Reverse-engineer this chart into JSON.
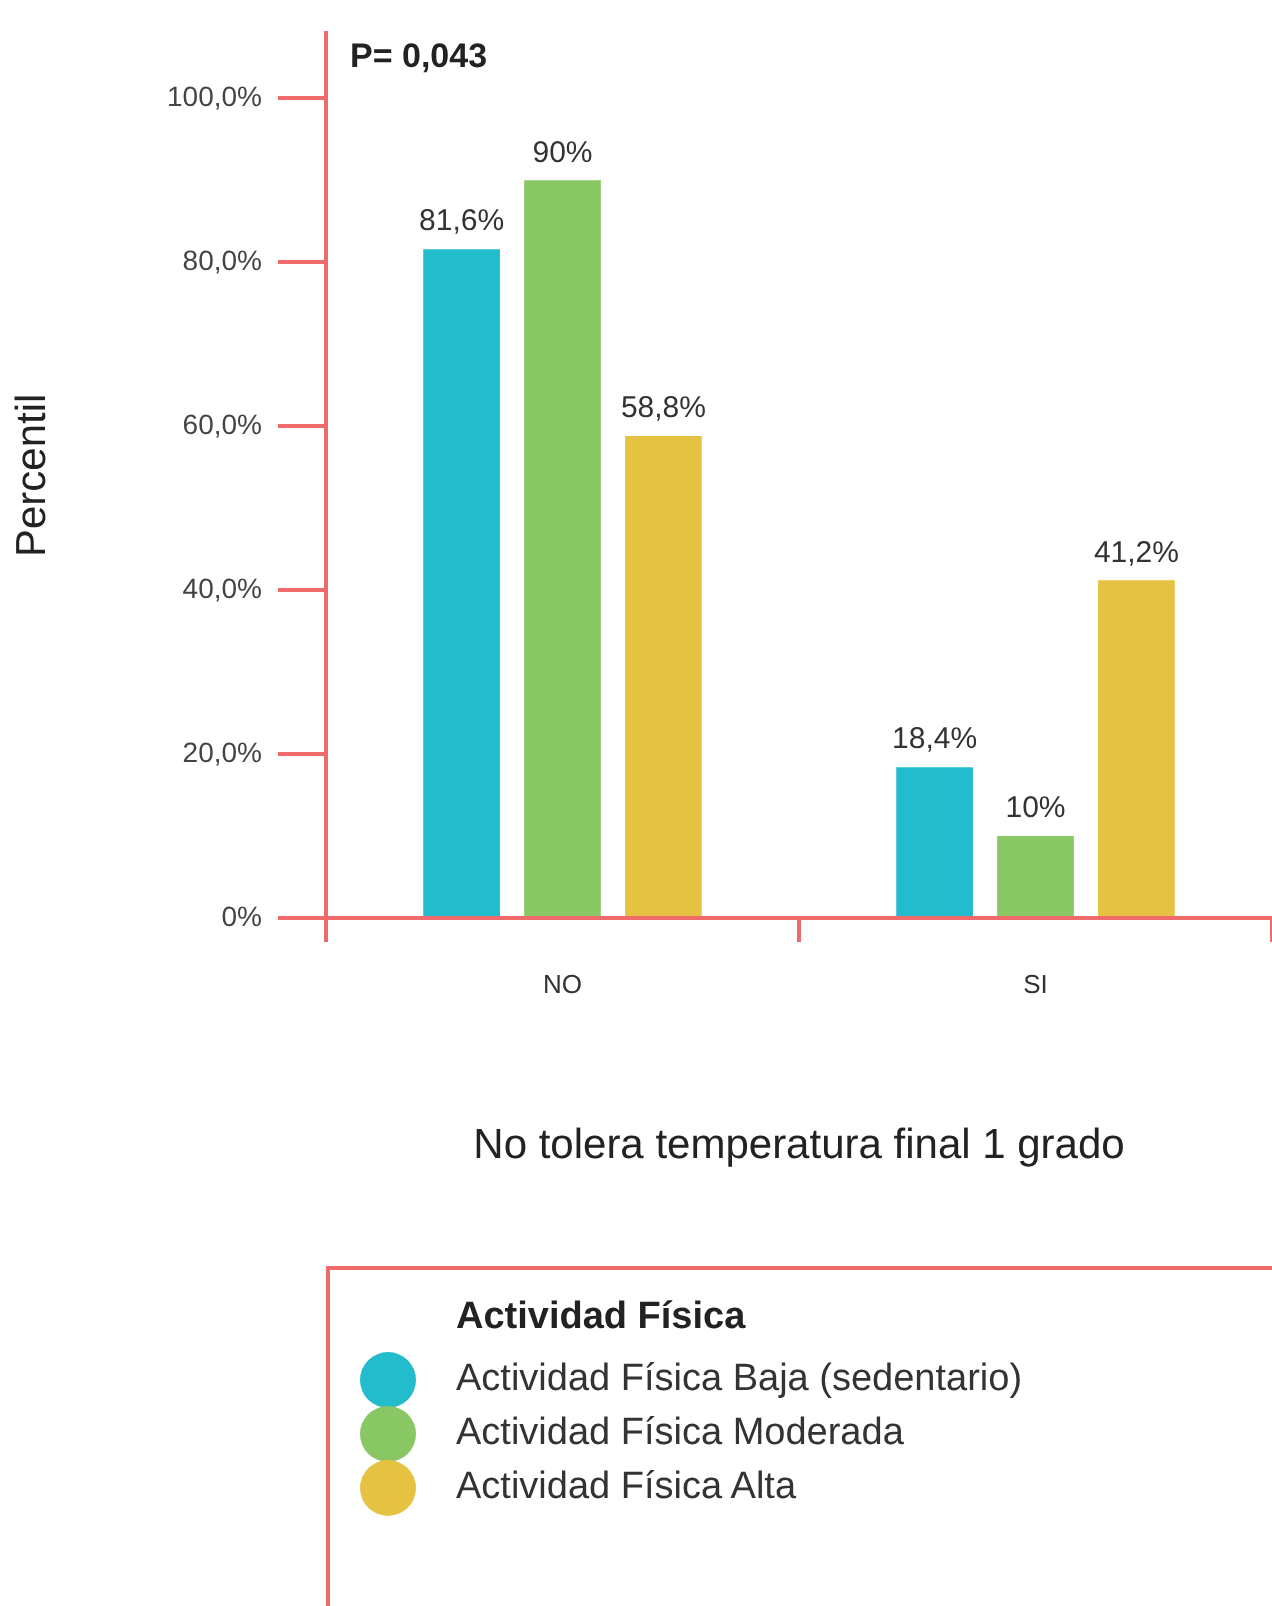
{
  "chart_data": {
    "type": "bar",
    "xlabel": "No tolera temperatura final 1 grado",
    "ylabel": "Percentil",
    "legend_title": "Actividad Física",
    "annotations": [
      "P= 0,043"
    ],
    "categories": [
      "NO",
      "SI"
    ],
    "series": [
      {
        "name": "Actividad Física Baja (sedentario)",
        "color": "#22bccc",
        "values": [
          81.6,
          18.4
        ],
        "value_labels": [
          "81,6%",
          "18,4%"
        ]
      },
      {
        "name": "Actividad Física Moderada",
        "color": "#89c765",
        "values": [
          90,
          10
        ],
        "value_labels": [
          "90%",
          "10%"
        ]
      },
      {
        "name": "Actividad Física Alta",
        "color": "#e6c242",
        "values": [
          58.8,
          41.2
        ],
        "value_labels": [
          "58,8%",
          "41,2%"
        ]
      }
    ],
    "ylim": [
      0,
      108
    ],
    "yticks": [
      {
        "value": 0,
        "label": "0%"
      },
      {
        "value": 20,
        "label": "20,0%"
      },
      {
        "value": 40,
        "label": "40,0%"
      },
      {
        "value": 60,
        "label": "60,0%"
      },
      {
        "value": 80,
        "label": "80,0%"
      },
      {
        "value": 100,
        "label": "100,0%"
      }
    ],
    "grid": false,
    "legend": "bottom"
  }
}
